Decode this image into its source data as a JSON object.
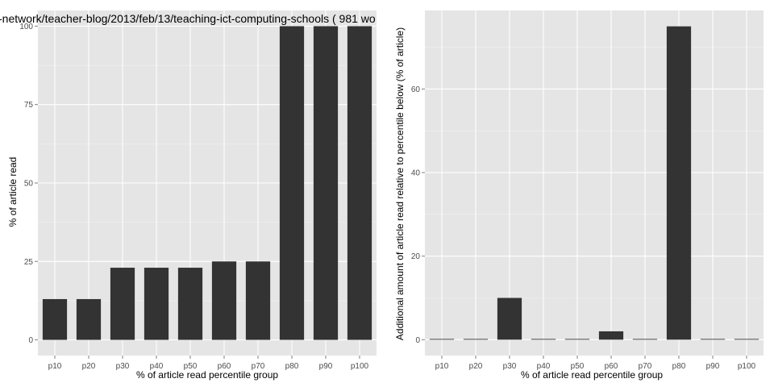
{
  "colors": {
    "panel_background": "#e5e5e5",
    "gridline": "#ffffff",
    "bar": "#333333",
    "tick_text": "#4d4d4d",
    "label_text": "#000000"
  },
  "chart_data": [
    {
      "type": "bar",
      "title": "-network/teacher-blog/2013/feb/13/teaching-ict-computing-schools ( 981 wo",
      "xlabel": "% of article read percentile group",
      "ylabel": "% of article read",
      "categories": [
        "p10",
        "p20",
        "p30",
        "p40",
        "p50",
        "p60",
        "p70",
        "p80",
        "p90",
        "p100"
      ],
      "values": [
        13,
        13,
        23,
        23,
        23,
        25,
        25,
        100,
        100,
        100
      ],
      "ylim": [
        -5,
        105
      ],
      "yticks": [
        0,
        25,
        50,
        75,
        100
      ],
      "grid": true
    },
    {
      "type": "bar",
      "title": "",
      "xlabel": "% of article read percentile group",
      "ylabel": "Additional amount of article read relative to percentile below (% of article)",
      "categories": [
        "p10",
        "p20",
        "p30",
        "p40",
        "p50",
        "p60",
        "p70",
        "p80",
        "p90",
        "p100"
      ],
      "values": [
        0,
        0,
        10,
        0,
        0,
        2,
        0,
        75,
        0,
        0
      ],
      "ylim": [
        -3.8,
        78.8
      ],
      "yticks": [
        0,
        20,
        40,
        60
      ],
      "grid": true
    }
  ]
}
